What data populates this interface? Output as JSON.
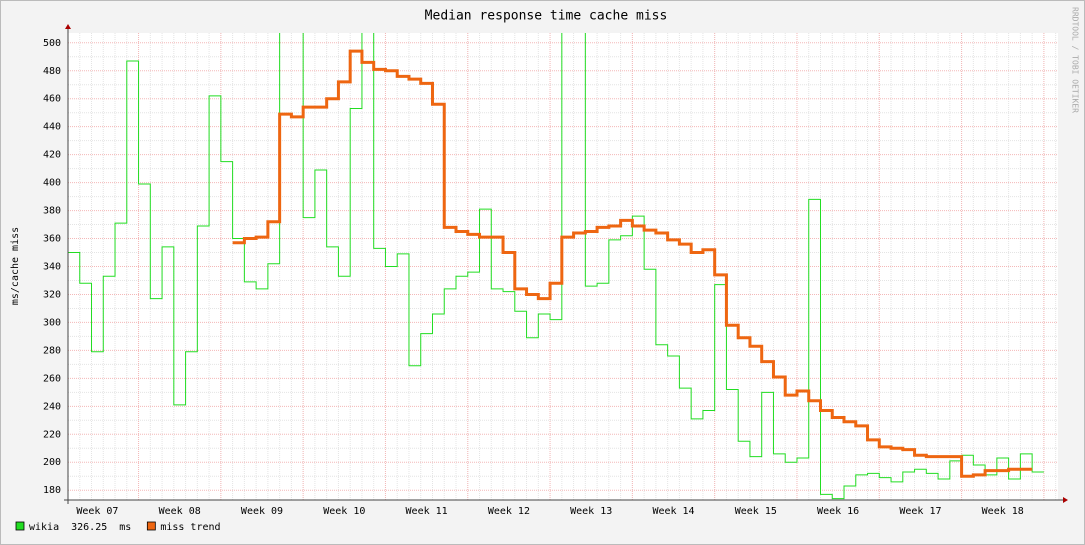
{
  "chart_data": {
    "type": "line",
    "title": "Median response time cache miss",
    "ylabel": "ms/cache miss",
    "watermark": "RRDTOOL / TOBI OETIKER",
    "step": true,
    "grid": true,
    "legend": "bottom-left",
    "xlim": [
      0,
      84.2
    ],
    "ylim": [
      173,
      507
    ],
    "yticks": [
      180,
      200,
      220,
      240,
      260,
      280,
      300,
      320,
      340,
      360,
      380,
      400,
      420,
      440,
      460,
      480,
      500
    ],
    "xticks": [
      {
        "value": 2.5,
        "label": "Week 07"
      },
      {
        "value": 9.5,
        "label": "Week 08"
      },
      {
        "value": 16.5,
        "label": "Week 09"
      },
      {
        "value": 23.5,
        "label": "Week 10"
      },
      {
        "value": 30.5,
        "label": "Week 11"
      },
      {
        "value": 37.5,
        "label": "Week 12"
      },
      {
        "value": 44.5,
        "label": "Week 13"
      },
      {
        "value": 51.5,
        "label": "Week 14"
      },
      {
        "value": 58.5,
        "label": "Week 15"
      },
      {
        "value": 65.5,
        "label": "Week 16"
      },
      {
        "value": 72.5,
        "label": "Week 17"
      },
      {
        "value": 79.5,
        "label": "Week 18"
      }
    ],
    "x": [
      0,
      1,
      2,
      3,
      4,
      5,
      6,
      7,
      8,
      9,
      10,
      11,
      12,
      13,
      14,
      15,
      16,
      17,
      18,
      19,
      20,
      21,
      22,
      23,
      24,
      25,
      26,
      27,
      28,
      29,
      30,
      31,
      32,
      33,
      34,
      35,
      36,
      37,
      38,
      39,
      40,
      41,
      42,
      43,
      44,
      45,
      46,
      47,
      48,
      49,
      50,
      51,
      52,
      53,
      54,
      55,
      56,
      57,
      58,
      59,
      60,
      61,
      62,
      63,
      64,
      65,
      66,
      67,
      68,
      69,
      70,
      71,
      72,
      73,
      74,
      75,
      76,
      77,
      78,
      79,
      80,
      81,
      82
    ],
    "series": [
      {
        "name": "wikia",
        "color": "#22dd22",
        "width": 1,
        "legend_value": "326.25  ms",
        "values": [
          350,
          328,
          279,
          333,
          371,
          487,
          399,
          317,
          354,
          241,
          279,
          369,
          462,
          415,
          360,
          329,
          324,
          342,
          512,
          512,
          375,
          409,
          354,
          333,
          453,
          512,
          353,
          340,
          349,
          269,
          292,
          306,
          324,
          333,
          336,
          381,
          324,
          322,
          308,
          289,
          306,
          302,
          512,
          512,
          326,
          328,
          359,
          362,
          376,
          338,
          284,
          276,
          253,
          231,
          237,
          327,
          252,
          215,
          204,
          250,
          206,
          200,
          203,
          388,
          177,
          174,
          183,
          191,
          192,
          189,
          186,
          193,
          195,
          192,
          188,
          201,
          205,
          198,
          191,
          203,
          188,
          206,
          193
        ]
      },
      {
        "name": "miss trend",
        "color": "#ee6611",
        "width": 3,
        "values": [
          null,
          null,
          null,
          null,
          null,
          null,
          null,
          null,
          null,
          null,
          null,
          null,
          null,
          null,
          357,
          360,
          361,
          372,
          449,
          447,
          454,
          454,
          460,
          472,
          494,
          486,
          481,
          480,
          476,
          474,
          471,
          456,
          368,
          365,
          363,
          361,
          361,
          350,
          324,
          320,
          317,
          328,
          361,
          364,
          365,
          368,
          369,
          373,
          369,
          366,
          364,
          359,
          356,
          350,
          352,
          334,
          298,
          289,
          283,
          272,
          261,
          248,
          251,
          244,
          237,
          232,
          229,
          226,
          216,
          211,
          210,
          209,
          205,
          204,
          204,
          204,
          190,
          191,
          194,
          194,
          195,
          195,
          null
        ]
      }
    ]
  }
}
